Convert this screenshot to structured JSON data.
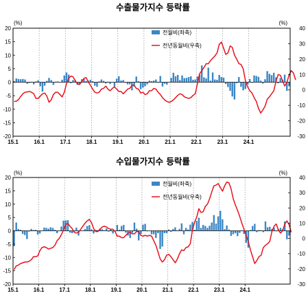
{
  "colors": {
    "bar": "#3a86c5",
    "line": "#e8111d",
    "axis": "#000000",
    "grid": "#9a9a9a"
  },
  "chart_data": [
    {
      "type": "bar",
      "title": "수출물가지수 등락률",
      "left_axis_unit": "(%)",
      "right_axis_unit": "(%)",
      "ylim_left": [
        -20,
        20
      ],
      "ylim_right": [
        -30,
        40
      ],
      "yticks_left": [
        "20",
        "15",
        "10",
        "5",
        "0",
        "-5",
        "-10",
        "-15",
        "-20"
      ],
      "yticks_right": [
        "40",
        "30",
        "20",
        "10",
        "0",
        "-10",
        "-20",
        "-30"
      ],
      "x_tick_labels": [
        "15.1",
        "16.1",
        "17.1",
        "18.1",
        "19.1",
        "20.1",
        "21.1",
        "22.1",
        "23.1",
        "24.1"
      ],
      "grid": "vertical dotted lines at each January",
      "legend_position": "top-right",
      "series": [
        {
          "name": "전월비(좌축)",
          "type": "bar",
          "axis": "left",
          "values": [
            0.4,
            1.4,
            1.2,
            1.1,
            1.2,
            1.0,
            -0.6,
            -0.3,
            0.2,
            -0.8,
            0.3,
            0.7,
            -1.5,
            -3.5,
            -1.3,
            0.5,
            1.6,
            0.8,
            -1.0,
            0.2,
            0.3,
            0.1,
            0.9,
            2.5,
            3.6,
            2.8,
            -0.4,
            0.8,
            0.8,
            -1.0,
            -0.7,
            1.1,
            1.2,
            0.4,
            0.6,
            0.9,
            0.4,
            -1.3,
            -1.7,
            0.3,
            1.0,
            0.5,
            -0.5,
            0.2,
            -0.7,
            0.1,
            -1.6,
            1.3,
            2.2,
            0.6,
            0.8,
            -0.2,
            -0.8,
            -0.8,
            -3.0,
            -1.6,
            2.1,
            0.4,
            -2.6,
            -2.0,
            -1.5,
            -0.8,
            0.6,
            0.4,
            0.6,
            1.0,
            -0.2,
            2.3,
            -1.6,
            -0.6,
            -0.9,
            0.1,
            1.6,
            3.5,
            2.2,
            2.7,
            0.8,
            2.5,
            1.5,
            1.6,
            1.9,
            2.2,
            0.9,
            1.0,
            2.1,
            2.8,
            6.2,
            1.8,
            1.4,
            5.4,
            0.6,
            3.6,
            1.0,
            0.9,
            2.7,
            1.9,
            1.7,
            -0.7,
            -1.8,
            -3.2,
            -5.3,
            -6.4,
            -0.4,
            1.9,
            -1.7,
            -3.0,
            -2.5,
            -0.8,
            1.2,
            -0.2,
            2.5,
            2.3,
            2.0,
            0.6,
            -0.5,
            1.1,
            4.1,
            3.1,
            2.6,
            3.5,
            1.8,
            -0.4,
            1.5,
            0.9,
            2.8,
            -3.2,
            -1.5
          ]
        },
        {
          "name": "전년동월비(우축)",
          "type": "line",
          "axis": "right",
          "values": [
            -7.5,
            -7.3,
            -6.3,
            -4.3,
            -2.5,
            -1.5,
            -1.3,
            -1.0,
            -1.5,
            -2.5,
            -5.5,
            -5.5,
            -4.0,
            -2.5,
            -2.0,
            -4.0,
            -8.0,
            -6.5,
            -3.0,
            -1.5,
            -1.5,
            -3.0,
            -4.5,
            -1.5,
            4.0,
            7.5,
            9.0,
            8.5,
            6.0,
            4.0,
            3.5,
            5.5,
            7.5,
            8.0,
            5.0,
            3.0,
            0.5,
            -1.5,
            -2.0,
            -1.5,
            0.5,
            1.0,
            2.5,
            0.5,
            -0.5,
            1.0,
            2.0,
            0.5,
            -1.0,
            -1.0,
            -2.5,
            -1.0,
            0.5,
            1.0,
            3.0,
            3.0,
            1.0,
            0.5,
            -2.0,
            -1.5,
            -3.0,
            -2.5,
            -0.5,
            -0.5,
            1.0,
            0.5,
            -1.5,
            -3.0,
            -5.0,
            -6.5,
            -7.5,
            -8.0,
            -7.5,
            -6.5,
            -5.0,
            -3.5,
            -2.5,
            -3.0,
            -4.5,
            -5.0,
            -5.5,
            -5.0,
            -3.5,
            -2.5,
            4.0,
            10.5,
            12.5,
            14.5,
            17.0,
            17.0,
            19.0,
            20.5,
            22.0,
            24.0,
            29.5,
            31.0,
            27.0,
            23.0,
            24.0,
            28.5,
            27.5,
            22.5,
            20.0,
            17.0,
            16.5,
            13.5,
            6.0,
            2.0,
            -0.5,
            -2.0,
            -5.0,
            -7.5,
            -12.0,
            -15.0,
            -13.0,
            -10.5,
            -6.0,
            -4.5,
            -2.5,
            -0.5,
            5.5,
            10.0,
            9.5,
            6.0,
            2.5,
            5.0,
            9.5,
            12.5,
            11.0,
            6.5
          ]
        }
      ]
    },
    {
      "type": "bar",
      "title": "수입물가지수 등락률",
      "left_axis_unit": "(%)",
      "right_axis_unit": "(%)",
      "ylim_left": [
        -20,
        20
      ],
      "ylim_right": [
        -30,
        40
      ],
      "yticks_left": [
        "20",
        "15",
        "10",
        "5",
        "0",
        "-5",
        "-10",
        "-15",
        "-20"
      ],
      "yticks_right": [
        "40",
        "30",
        "20",
        "10",
        "0",
        "-10",
        "-20",
        "-30"
      ],
      "x_tick_labels": [
        "15.1",
        "16.1",
        "17.1",
        "18.1",
        "19.1",
        "20.1",
        "21.1",
        "22.1",
        "23.1",
        "24.1"
      ],
      "grid": "vertical dotted lines at each January",
      "legend_position": "top-right",
      "series": [
        {
          "name": "전월비(좌축)",
          "type": "bar",
          "axis": "left",
          "values": [
            -5.8,
            3.1,
            0.7,
            0.4,
            -1.2,
            -1.6,
            -3.1,
            -0.3,
            0.7,
            0.3,
            0.4,
            -1.4,
            -1.0,
            -0.1,
            1.2,
            1.1,
            0.8,
            1.3,
            1.1,
            0.4,
            -0.9,
            -0.1,
            1.6,
            3.8,
            3.9,
            4.0,
            -0.7,
            -0.9,
            -0.3,
            1.2,
            -1.8,
            -0.1,
            -0.1,
            0.7,
            1.8,
            2.1,
            0.6,
            -1.0,
            0.3,
            0.3,
            0.9,
            0.6,
            0.2,
            0.9,
            -0.3,
            0.6,
            -1.0,
            0.1,
            2.2,
            0.4,
            1.8,
            2.2,
            -0.7,
            -1.8,
            -2.7,
            -0.8,
            3.1,
            0.8,
            -3.6,
            -1.1,
            2.3,
            2.6,
            -0.2,
            0.1,
            -1.3,
            -1.3,
            -2.7,
            -0.9,
            -6.8,
            -5.9,
            -0.9,
            -0.9,
            0.5,
            -0.4,
            0.7,
            1.3,
            0.2,
            0.7,
            2.8,
            -1.3,
            1.1,
            0.5,
            2.3,
            3.3,
            0.4,
            3.7,
            4.9,
            1.1,
            2.2,
            1.8,
            1.1,
            1.9,
            3.1,
            5.9,
            2.7,
            5.4,
            7.5,
            4.3,
            0.6,
            2.0,
            0.5,
            -1.9,
            -1.3,
            -0.9,
            -2.0,
            -0.8,
            0.2,
            -1.2,
            -4.5,
            -6.3,
            0.3,
            1.8,
            2.6,
            -0.5,
            0.3,
            0.2,
            -0.5,
            3.5,
            1.3,
            1.5,
            0.7,
            1.2,
            -0.2,
            0.7,
            1.1,
            0.6,
            3.5,
            -3.2,
            -1.8
          ]
        },
        {
          "name": "전년동월비(우축)",
          "type": "line",
          "axis": "right",
          "values": [
            -20.5,
            -18.0,
            -17.5,
            -16.5,
            -16.0,
            -15.5,
            -15.5,
            -15.0,
            -14.0,
            -12.0,
            -12.0,
            -11.5,
            -8.0,
            -6.0,
            -5.5,
            -6.0,
            -7.0,
            -6.5,
            -6.0,
            -4.5,
            -1.5,
            0.0,
            2.5,
            5.5,
            9.0,
            10.0,
            8.0,
            6.5,
            4.0,
            3.5,
            4.0,
            6.0,
            8.0,
            10.0,
            11.5,
            12.5,
            10.5,
            6.5,
            4.5,
            4.5,
            6.0,
            7.5,
            8.0,
            7.5,
            6.5,
            6.0,
            6.0,
            4.5,
            1.5,
            1.5,
            0.5,
            0.5,
            2.0,
            3.5,
            4.0,
            3.0,
            3.0,
            4.5,
            4.5,
            2.0,
            1.5,
            2.0,
            1.5,
            2.0,
            1.5,
            -1.5,
            -4.5,
            -9.0,
            -13.5,
            -15.5,
            -14.0,
            -11.0,
            -10.5,
            -12.0,
            -14.0,
            -16.0,
            -13.5,
            -10.0,
            -7.5,
            -8.0,
            -6.0,
            -5.5,
            -3.5,
            5.5,
            10.5,
            14.0,
            19.5,
            17.0,
            17.5,
            21.0,
            22.5,
            26.0,
            30.5,
            34.5,
            35.0,
            36.0,
            33.5,
            31.0,
            34.5,
            37.0,
            36.5,
            32.5,
            26.0,
            22.0,
            18.5,
            14.5,
            10.0,
            6.0,
            2.0,
            -2.0,
            -7.5,
            -12.0,
            -16.5,
            -14.5,
            -12.0,
            -11.0,
            -6.0,
            -4.5,
            -3.5,
            -2.0,
            4.5,
            8.0,
            9.5,
            5.5,
            3.5,
            5.0,
            9.5,
            11.5,
            9.0,
            4.0
          ]
        }
      ]
    }
  ]
}
